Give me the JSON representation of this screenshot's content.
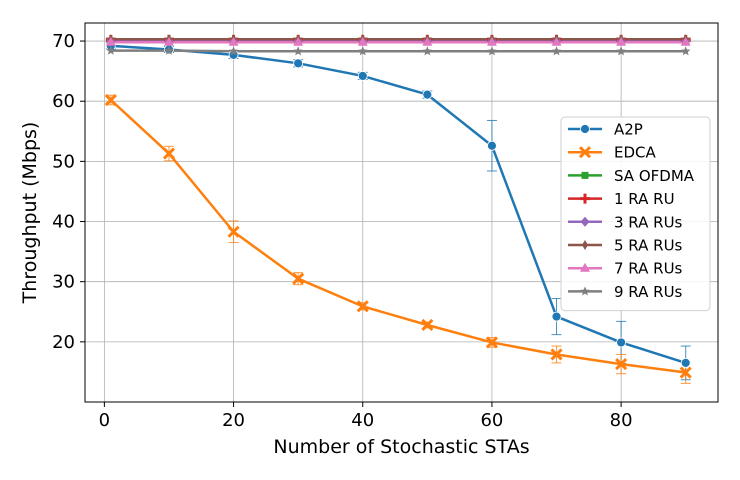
{
  "chart_data": {
    "type": "line",
    "title": "",
    "xlabel": "Number of Stochastic STAs",
    "ylabel": "Throughput (Mbps)",
    "xlim": [
      -3,
      95
    ],
    "ylim": [
      10,
      73
    ],
    "xticks": [
      0,
      20,
      40,
      60,
      80
    ],
    "yticks": [
      20,
      30,
      40,
      50,
      60,
      70
    ],
    "grid": true,
    "legend_position": "center-right",
    "x": [
      1,
      10,
      20,
      30,
      40,
      50,
      60,
      70,
      80,
      90
    ],
    "series": [
      {
        "name": "A2P",
        "color": "#1f77b4",
        "marker": "circle",
        "values": [
          69.2,
          68.6,
          67.7,
          66.3,
          64.2,
          61.1,
          52.6,
          24.2,
          19.9,
          16.5
        ],
        "err": [
          0.5,
          0.5,
          0.6,
          0.6,
          0.6,
          0.6,
          4.2,
          3.0,
          3.5,
          2.8
        ]
      },
      {
        "name": "EDCA",
        "color": "#ff7f0e",
        "marker": "x",
        "values": [
          60.2,
          51.3,
          38.3,
          30.5,
          25.9,
          22.8,
          19.9,
          17.9,
          16.3,
          14.9
        ],
        "err": [
          0.8,
          1.2,
          1.8,
          1.0,
          0.6,
          0.5,
          0.8,
          1.4,
          1.6,
          1.8
        ]
      },
      {
        "name": "SA OFDMA",
        "color": "#2ca02c",
        "marker": "square",
        "values": [
          70.0,
          70.0,
          70.0,
          70.0,
          70.0,
          70.0,
          70.0,
          70.0,
          70.0,
          70.0
        ],
        "err": [
          0,
          0,
          0,
          0,
          0,
          0,
          0,
          0,
          0,
          0
        ]
      },
      {
        "name": "1 RA RU",
        "color": "#d62728",
        "marker": "plus",
        "values": [
          70.2,
          70.2,
          70.2,
          70.2,
          70.2,
          70.2,
          70.2,
          70.2,
          70.2,
          70.2
        ],
        "err": [
          0.3,
          0.3,
          0.3,
          0.3,
          0.3,
          0.3,
          0.3,
          0.3,
          0.3,
          0.3
        ]
      },
      {
        "name": "3 RA RUs",
        "color": "#9467bd",
        "marker": "diamond",
        "values": [
          70.1,
          70.1,
          70.1,
          70.1,
          70.1,
          70.1,
          70.1,
          70.1,
          70.1,
          70.1
        ],
        "err": [
          0,
          0,
          0,
          0,
          0,
          0,
          0,
          0,
          0,
          0
        ]
      },
      {
        "name": "5 RA RUs",
        "color": "#8c564b",
        "marker": "thin_diamond",
        "values": [
          70.3,
          70.3,
          70.3,
          70.3,
          70.3,
          70.3,
          70.3,
          70.3,
          70.3,
          70.3
        ],
        "err": [
          0,
          0,
          0,
          0,
          0,
          0,
          0,
          0,
          0,
          0
        ]
      },
      {
        "name": "7 RA RUs",
        "color": "#e377c2",
        "marker": "triangle",
        "values": [
          69.8,
          69.8,
          69.8,
          69.8,
          69.8,
          69.8,
          69.8,
          69.8,
          69.8,
          69.8
        ],
        "err": [
          0,
          0,
          0,
          0,
          0,
          0,
          0,
          0,
          0,
          0
        ]
      },
      {
        "name": "9 RA RUs",
        "color": "#7f7f7f",
        "marker": "star",
        "values": [
          68.4,
          68.4,
          68.3,
          68.3,
          68.3,
          68.3,
          68.3,
          68.3,
          68.3,
          68.3
        ],
        "err": [
          0,
          0,
          0,
          0,
          0,
          0,
          0,
          0,
          0,
          0
        ]
      }
    ]
  }
}
